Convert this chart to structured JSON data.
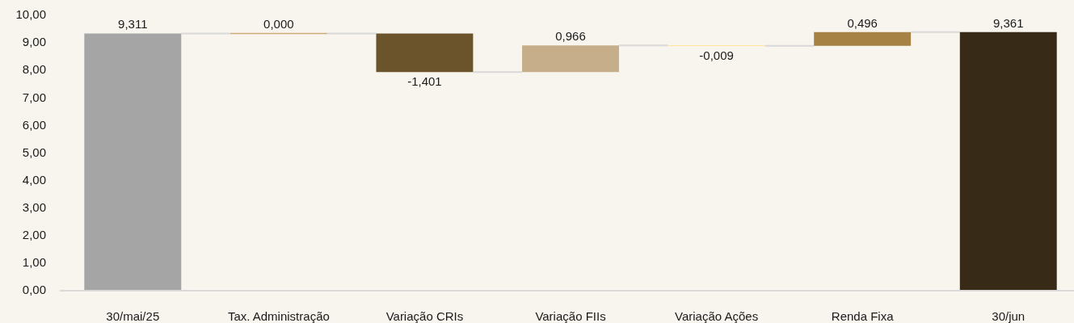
{
  "chart_data": {
    "type": "bar",
    "categories": [
      "30/mai/25",
      "Tax. Administração",
      "Variação CRIs",
      "Variação FIIs",
      "Variação Ações",
      "Renda Fixa",
      "30/jun"
    ],
    "values": [
      9.311,
      0.0,
      -1.401,
      0.966,
      -0.009,
      0.496,
      9.361
    ],
    "base": [
      0,
      9.311,
      9.311,
      7.91,
      8.876,
      8.867,
      0
    ],
    "colors": [
      "#a5a5a5",
      "#c9aa78",
      "#6b532c",
      "#c5ae89",
      "#ffe699",
      "#a68245",
      "#372a17"
    ],
    "value_labels": [
      "9,311",
      "0,000",
      "-1,401",
      "0,966",
      "-0,009",
      "0,496",
      "9,361"
    ],
    "ylim": [
      0,
      10
    ],
    "yticks": [
      {
        "value": 0,
        "label": "0,00"
      },
      {
        "value": 1,
        "label": "1,00"
      },
      {
        "value": 2,
        "label": "2,00"
      },
      {
        "value": 3,
        "label": "3,00"
      },
      {
        "value": 4,
        "label": "4,00"
      },
      {
        "value": 5,
        "label": "5,00"
      },
      {
        "value": 6,
        "label": "6,00"
      },
      {
        "value": 7,
        "label": "7,00"
      },
      {
        "value": 8,
        "label": "8,00"
      },
      {
        "value": 9,
        "label": "9,00"
      },
      {
        "value": 10,
        "label": "10,00"
      }
    ]
  }
}
